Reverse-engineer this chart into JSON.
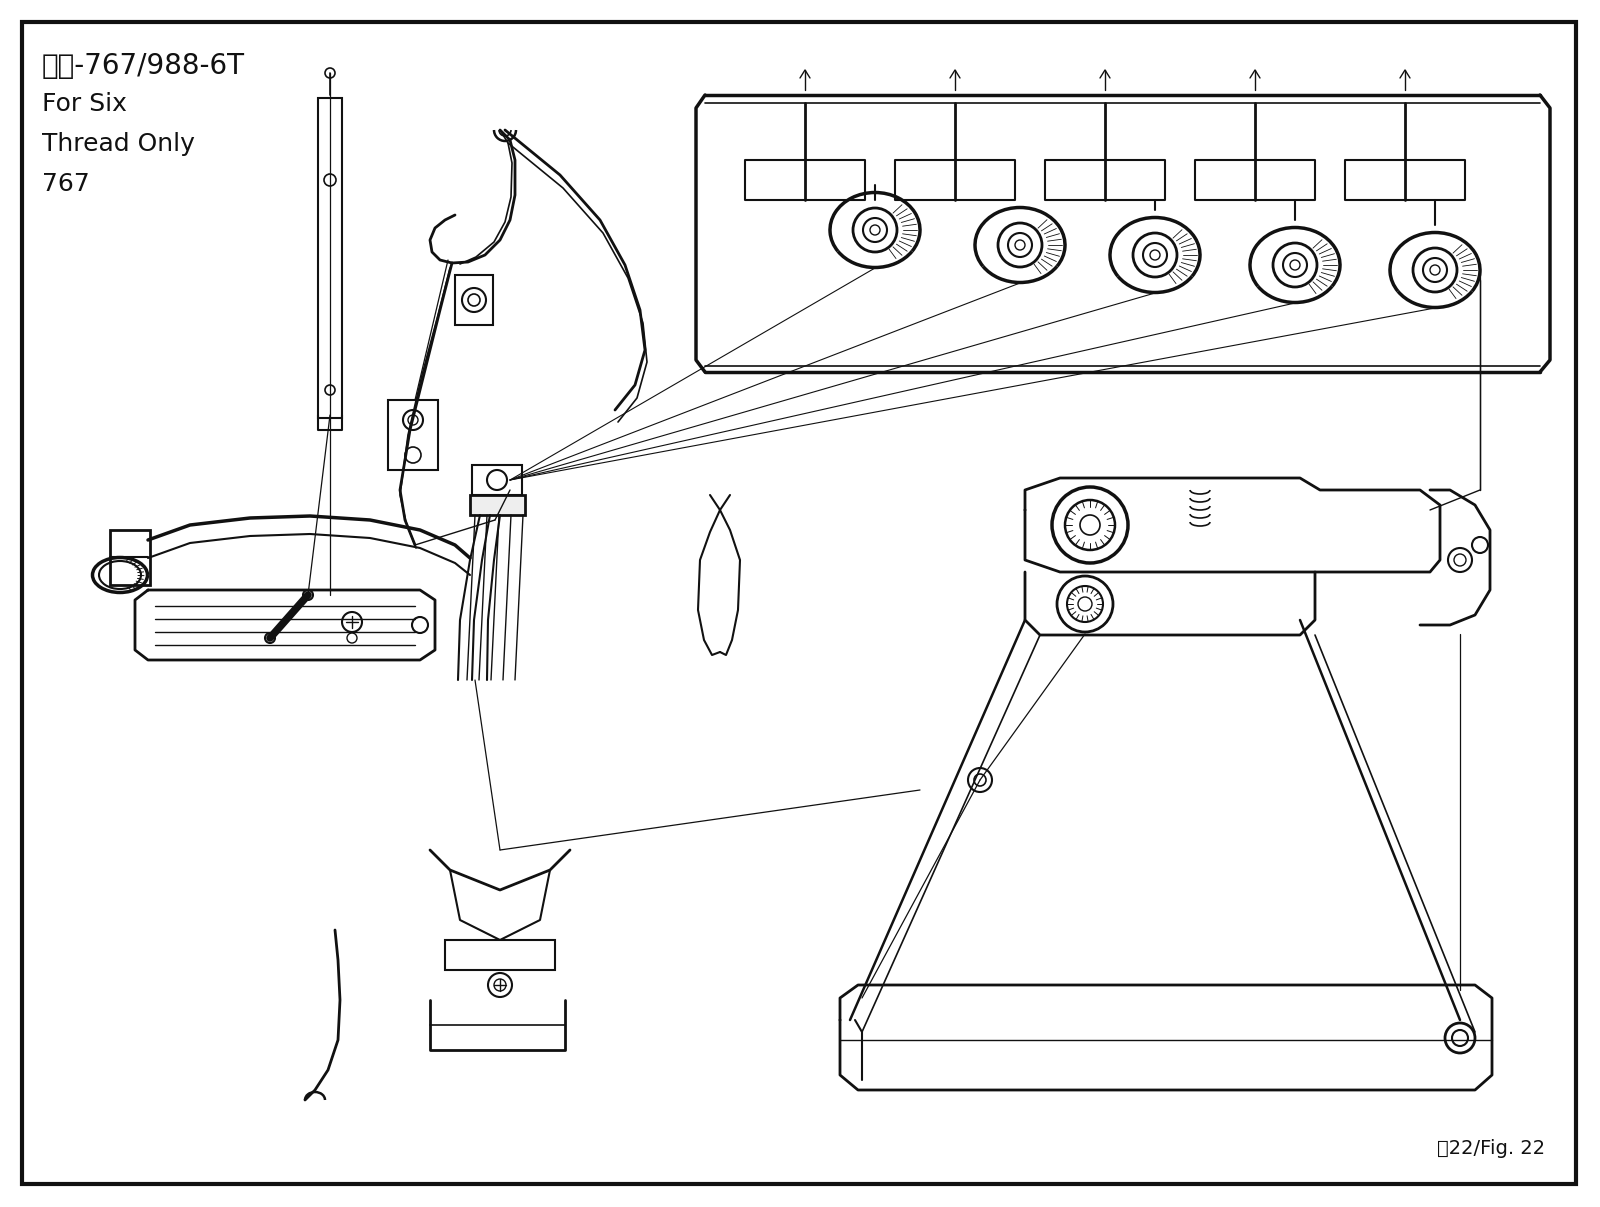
{
  "background_color": "#ffffff",
  "border_color": "#111111",
  "line_color": "#111111",
  "title_lines": [
    "六線-767/988-6T",
    "For Six",
    "Thread Only",
    "767"
  ],
  "figure_label": "剧22/Fig. 22",
  "border_lw": 3.0,
  "line_lw": 1.3,
  "fig_width": 16.0,
  "fig_height": 12.07,
  "dpi": 100
}
